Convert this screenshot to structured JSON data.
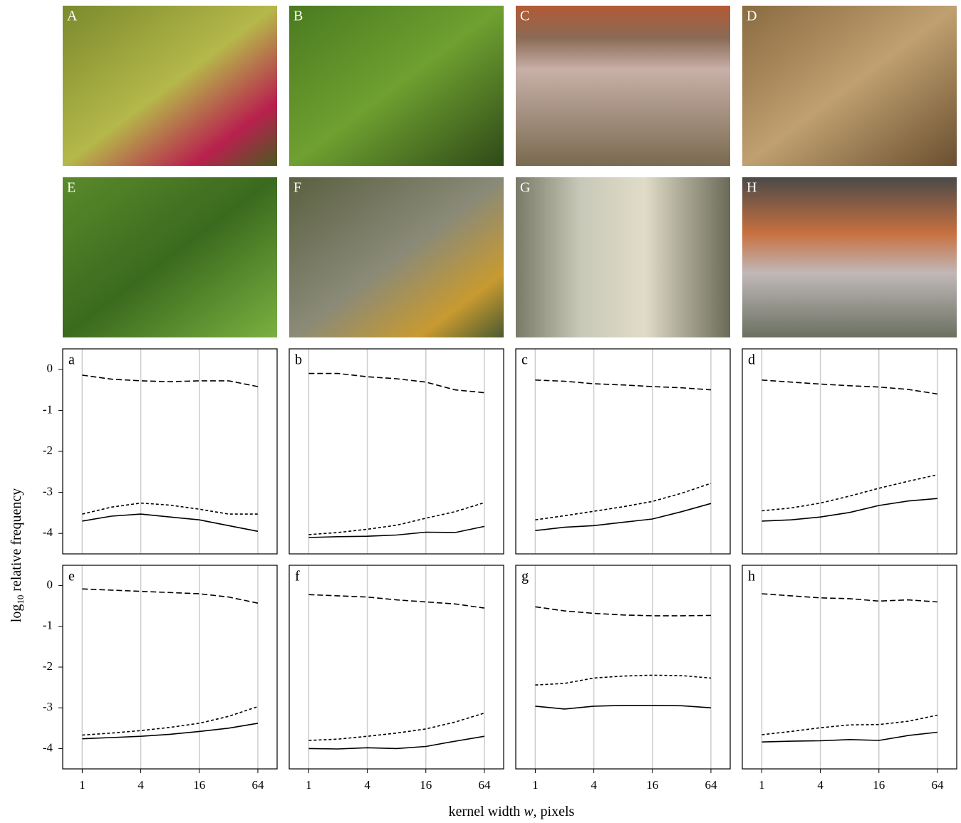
{
  "photo_labels": [
    "A",
    "B",
    "C",
    "D",
    "E",
    "F",
    "G",
    "H"
  ],
  "ylabel_parts": [
    "log",
    "10",
    " relative frequency"
  ],
  "xlabel_parts": [
    "kernel width ",
    "w",
    ", pixels"
  ],
  "chart_data": [
    {
      "type": "line",
      "label": "a",
      "xscale": "log",
      "x": [
        1,
        2,
        4,
        8,
        16,
        32,
        64
      ],
      "xlim": [
        0.63,
        101
      ],
      "xticks": [
        1,
        4,
        16,
        64
      ],
      "show_xtick_labels": false,
      "ylim": [
        -4.5,
        0.5
      ],
      "yticks": [
        0,
        -1,
        -2,
        -3,
        -4
      ],
      "grid": "x",
      "series": [
        {
          "color": "#000",
          "dash": "dashed",
          "values": [
            -0.14,
            -0.24,
            -0.28,
            -0.3,
            -0.28,
            -0.28,
            -0.42
          ]
        },
        {
          "color": "#000",
          "dash": "dotted",
          "values": [
            -3.53,
            -3.36,
            -3.26,
            -3.31,
            -3.41,
            -3.53,
            -3.53
          ]
        },
        {
          "color": "#000",
          "dash": "solid",
          "values": [
            -3.7,
            -3.58,
            -3.53,
            -3.6,
            -3.67,
            -3.81,
            -3.95
          ]
        }
      ]
    },
    {
      "type": "line",
      "label": "b",
      "xscale": "log",
      "x": [
        1,
        2,
        4,
        8,
        16,
        32,
        64
      ],
      "xlim": [
        0.63,
        101
      ],
      "xticks": [
        1,
        4,
        16,
        64
      ],
      "show_xtick_labels": false,
      "ylim": [
        -4.5,
        0.5
      ],
      "grid": "x",
      "series": [
        {
          "color": "#000",
          "dash": "dashed",
          "values": [
            -0.1,
            -0.1,
            -0.18,
            -0.23,
            -0.31,
            -0.5,
            -0.57
          ]
        },
        {
          "color": "#000",
          "dash": "dotted",
          "values": [
            -4.03,
            -3.98,
            -3.9,
            -3.8,
            -3.63,
            -3.47,
            -3.25
          ]
        },
        {
          "color": "#000",
          "dash": "solid",
          "values": [
            -4.1,
            -4.08,
            -4.07,
            -4.04,
            -3.97,
            -3.98,
            -3.83
          ]
        }
      ]
    },
    {
      "type": "line",
      "label": "c",
      "xscale": "log",
      "x": [
        1,
        2,
        4,
        8,
        16,
        32,
        64
      ],
      "xlim": [
        0.63,
        101
      ],
      "xticks": [
        1,
        4,
        16,
        64
      ],
      "show_xtick_labels": false,
      "ylim": [
        -4.5,
        0.5
      ],
      "grid": "x",
      "series": [
        {
          "color": "#000",
          "dash": "dashed",
          "values": [
            -0.26,
            -0.29,
            -0.35,
            -0.38,
            -0.42,
            -0.45,
            -0.5
          ]
        },
        {
          "color": "#000",
          "dash": "dotted",
          "values": [
            -3.67,
            -3.57,
            -3.46,
            -3.35,
            -3.22,
            -3.02,
            -2.78
          ]
        },
        {
          "color": "#000",
          "dash": "solid",
          "values": [
            -3.93,
            -3.85,
            -3.81,
            -3.73,
            -3.65,
            -3.47,
            -3.27
          ]
        }
      ]
    },
    {
      "type": "line",
      "label": "d",
      "xscale": "log",
      "x": [
        1,
        2,
        4,
        8,
        16,
        32,
        64
      ],
      "xlim": [
        0.63,
        101
      ],
      "xticks": [
        1,
        4,
        16,
        64
      ],
      "show_xtick_labels": false,
      "ylim": [
        -4.5,
        0.5
      ],
      "grid": "x",
      "series": [
        {
          "color": "#000",
          "dash": "dashed",
          "values": [
            -0.26,
            -0.31,
            -0.36,
            -0.4,
            -0.43,
            -0.49,
            -0.6
          ]
        },
        {
          "color": "#000",
          "dash": "dotted",
          "values": [
            -3.45,
            -3.38,
            -3.26,
            -3.09,
            -2.9,
            -2.73,
            -2.57
          ]
        },
        {
          "color": "#000",
          "dash": "solid",
          "values": [
            -3.7,
            -3.67,
            -3.6,
            -3.49,
            -3.32,
            -3.21,
            -3.15
          ]
        }
      ]
    },
    {
      "type": "line",
      "label": "e",
      "xscale": "log",
      "x": [
        1,
        2,
        4,
        8,
        16,
        32,
        64
      ],
      "xlim": [
        0.63,
        101
      ],
      "xticks": [
        1,
        4,
        16,
        64
      ],
      "show_xtick_labels": true,
      "ylim": [
        -4.5,
        0.5
      ],
      "yticks": [
        0,
        -1,
        -2,
        -3,
        -4
      ],
      "grid": "x",
      "series": [
        {
          "color": "#000",
          "dash": "dashed",
          "values": [
            -0.08,
            -0.11,
            -0.14,
            -0.17,
            -0.2,
            -0.28,
            -0.43
          ]
        },
        {
          "color": "#000",
          "dash": "dotted",
          "values": [
            -3.67,
            -3.62,
            -3.56,
            -3.48,
            -3.38,
            -3.21,
            -2.97
          ]
        },
        {
          "color": "#000",
          "dash": "solid",
          "values": [
            -3.76,
            -3.73,
            -3.7,
            -3.65,
            -3.58,
            -3.5,
            -3.38
          ]
        }
      ]
    },
    {
      "type": "line",
      "label": "f",
      "xscale": "log",
      "x": [
        1,
        2,
        4,
        8,
        16,
        32,
        64
      ],
      "xlim": [
        0.63,
        101
      ],
      "xticks": [
        1,
        4,
        16,
        64
      ],
      "show_xtick_labels": true,
      "ylim": [
        -4.5,
        0.5
      ],
      "grid": "x",
      "series": [
        {
          "color": "#000",
          "dash": "dashed",
          "values": [
            -0.22,
            -0.25,
            -0.28,
            -0.35,
            -0.4,
            -0.45,
            -0.55
          ]
        },
        {
          "color": "#000",
          "dash": "dotted",
          "values": [
            -3.8,
            -3.77,
            -3.7,
            -3.62,
            -3.52,
            -3.35,
            -3.13
          ]
        },
        {
          "color": "#000",
          "dash": "solid",
          "values": [
            -4.0,
            -4.01,
            -3.98,
            -4.0,
            -3.95,
            -3.82,
            -3.7
          ]
        }
      ]
    },
    {
      "type": "line",
      "label": "g",
      "xscale": "log",
      "x": [
        1,
        2,
        4,
        8,
        16,
        32,
        64
      ],
      "xlim": [
        0.63,
        101
      ],
      "xticks": [
        1,
        4,
        16,
        64
      ],
      "show_xtick_labels": true,
      "ylim": [
        -4.5,
        0.5
      ],
      "grid": "x",
      "series": [
        {
          "color": "#000",
          "dash": "dashed",
          "values": [
            -0.52,
            -0.62,
            -0.68,
            -0.72,
            -0.74,
            -0.74,
            -0.73
          ]
        },
        {
          "color": "#000",
          "dash": "dotted",
          "values": [
            -2.44,
            -2.4,
            -2.27,
            -2.22,
            -2.2,
            -2.21,
            -2.27
          ]
        },
        {
          "color": "#000",
          "dash": "solid",
          "values": [
            -2.96,
            -3.03,
            -2.96,
            -2.94,
            -2.94,
            -2.95,
            -3.0
          ]
        }
      ]
    },
    {
      "type": "line",
      "label": "h",
      "xscale": "log",
      "x": [
        1,
        2,
        4,
        8,
        16,
        32,
        64
      ],
      "xlim": [
        0.63,
        101
      ],
      "xticks": [
        1,
        4,
        16,
        64
      ],
      "show_xtick_labels": true,
      "ylim": [
        -4.5,
        0.5
      ],
      "grid": "x",
      "series": [
        {
          "color": "#000",
          "dash": "dashed",
          "values": [
            -0.2,
            -0.25,
            -0.3,
            -0.32,
            -0.38,
            -0.35,
            -0.4
          ]
        },
        {
          "color": "#000",
          "dash": "dotted",
          "values": [
            -3.66,
            -3.58,
            -3.49,
            -3.42,
            -3.41,
            -3.33,
            -3.18
          ]
        },
        {
          "color": "#000",
          "dash": "solid",
          "values": [
            -3.84,
            -3.82,
            -3.81,
            -3.78,
            -3.8,
            -3.68,
            -3.6
          ]
        }
      ]
    }
  ]
}
